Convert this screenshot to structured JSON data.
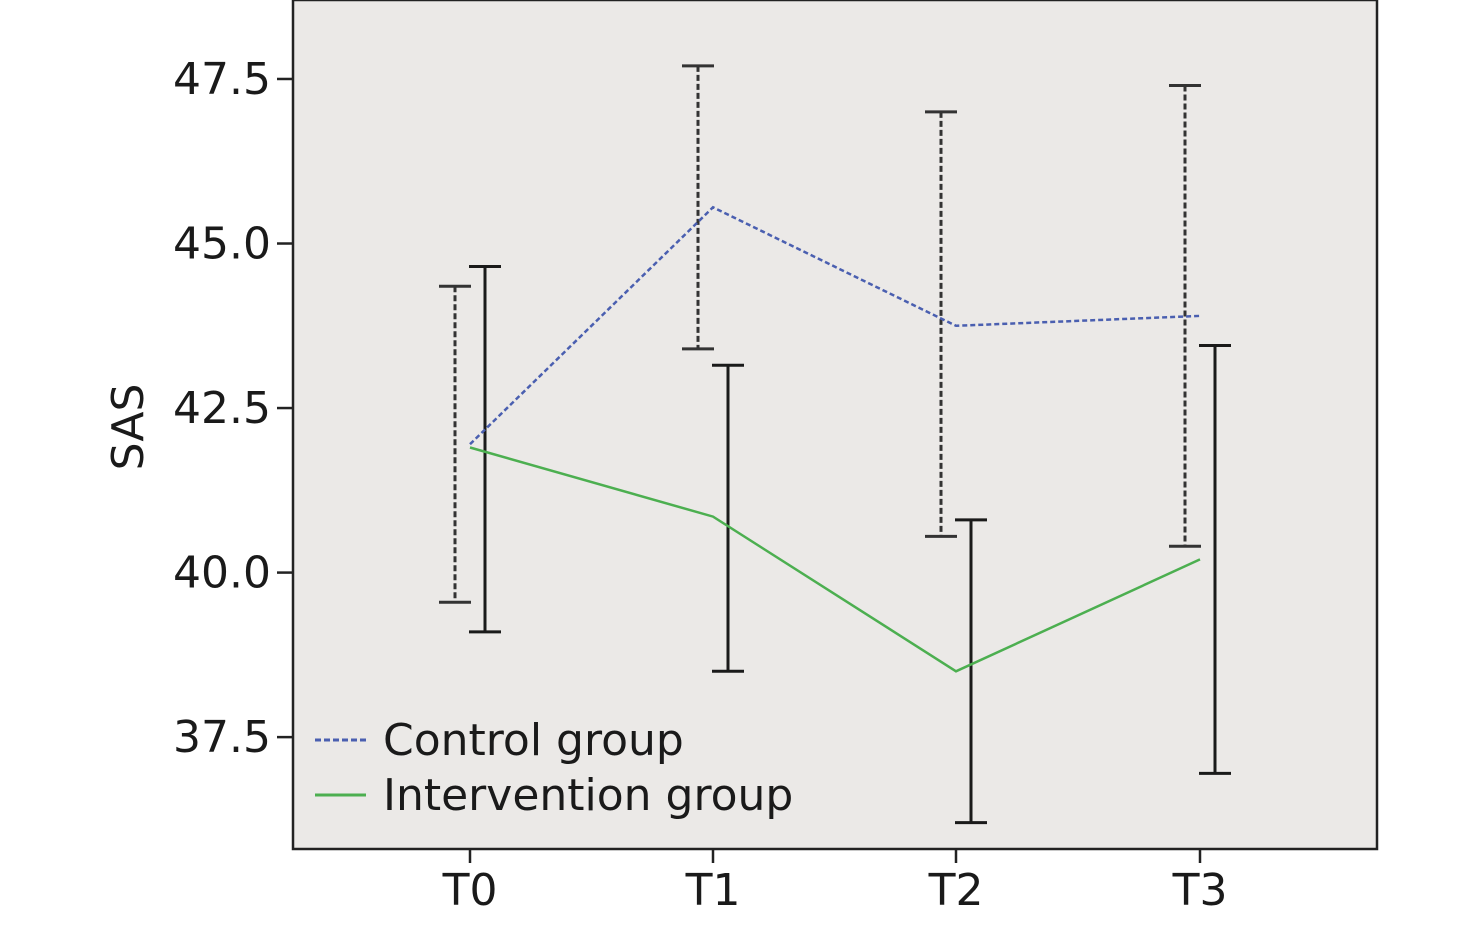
{
  "chart_data": {
    "type": "line",
    "categories": [
      "T0",
      "T1",
      "T2",
      "T3"
    ],
    "ylabel": "SAS",
    "xlabel": "",
    "ylim": [
      35.8,
      48.7
    ],
    "yticks": [
      37.5,
      40.0,
      42.5,
      45.0,
      47.5
    ],
    "ytick_labels": [
      "37.5",
      "40.0",
      "42.5",
      "45.0",
      "47.5"
    ],
    "grid": false,
    "legend_position": "bottom-left",
    "background_color": "#ebe9e7",
    "series": [
      {
        "name": "Control group",
        "color": "#4a5fb0",
        "line_style": "dashed",
        "values": [
          41.95,
          45.55,
          43.75,
          43.9
        ],
        "error_low": [
          39.55,
          43.4,
          40.55,
          40.4
        ],
        "error_high": [
          44.35,
          47.7,
          47.0,
          47.4
        ],
        "error_style": "dashed"
      },
      {
        "name": "Intervention group",
        "color": "#4caf50",
        "line_style": "solid",
        "values": [
          41.9,
          40.85,
          38.5,
          40.2
        ],
        "error_low": [
          39.1,
          38.5,
          36.2,
          36.95
        ],
        "error_high": [
          44.65,
          43.15,
          40.8,
          43.45
        ],
        "error_style": "solid"
      }
    ]
  }
}
